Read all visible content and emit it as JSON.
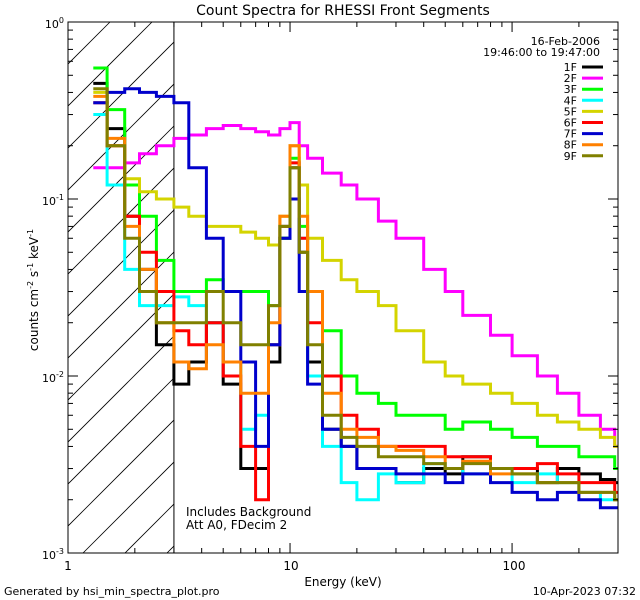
{
  "chart_data": {
    "type": "line",
    "title": "Count Spectra for RHESSI Front Segments",
    "xlabel": "Energy (keV)",
    "ylabel": "counts cm",
    "ylabel_sup1": "-2",
    "ylabel_mid": " s",
    "ylabel_sup2": "-1",
    "ylabel_tail": " keV",
    "ylabel_sup3": "-1",
    "x_scale": "log",
    "y_scale": "log",
    "xlim": [
      1.0,
      300.0
    ],
    "ylim": [
      0.001,
      1.0
    ],
    "x_ticks": [
      {
        "value": 1,
        "label": "1"
      },
      {
        "value": 10,
        "label": "10"
      },
      {
        "value": 100,
        "label": "100"
      }
    ],
    "y_ticks": [
      {
        "value": 1,
        "base": "10",
        "exp": "0"
      },
      {
        "value": 0.1,
        "base": "10",
        "exp": "-1"
      },
      {
        "value": 0.01,
        "base": "10",
        "exp": "-2"
      },
      {
        "value": 0.001,
        "base": "10",
        "exp": "-3"
      }
    ],
    "date": "16-Feb-2006",
    "time_range": "19:46:00 to 19:47:00",
    "shaded_region_keV": [
      1.0,
      3.0
    ],
    "annotation_line1": "Includes Background",
    "annotation_line2": "Att A0, FDecim 2",
    "legend_position": "top-right",
    "series": [
      {
        "name": "1F",
        "color": "#000000",
        "x": [
          1.3,
          1.5,
          1.8,
          2.1,
          2.5,
          3.0,
          3.5,
          4.2,
          5,
          6,
          7,
          8,
          9,
          10,
          11,
          12,
          14,
          17,
          20,
          25,
          30,
          40,
          50,
          60,
          80,
          100,
          130,
          160,
          200,
          250,
          290
        ],
        "y": [
          0.45,
          0.25,
          0.08,
          0.04,
          0.015,
          0.009,
          0.012,
          0.02,
          0.009,
          0.003,
          0.003,
          0.012,
          0.06,
          0.15,
          0.05,
          0.012,
          0.005,
          0.004,
          0.003,
          0.003,
          0.0025,
          0.003,
          0.0028,
          0.0035,
          0.003,
          0.003,
          0.0025,
          0.003,
          0.0028,
          0.0026,
          0.0025
        ]
      },
      {
        "name": "2F",
        "color": "#ff00ff",
        "x": [
          1.3,
          1.5,
          1.8,
          2.1,
          2.5,
          3.0,
          3.5,
          4.2,
          5,
          6,
          7,
          8,
          9,
          10,
          11,
          12,
          14,
          17,
          20,
          25,
          30,
          40,
          50,
          60,
          80,
          100,
          130,
          160,
          200,
          250,
          290
        ],
        "y": [
          0.15,
          0.15,
          0.16,
          0.18,
          0.2,
          0.22,
          0.23,
          0.25,
          0.26,
          0.25,
          0.24,
          0.23,
          0.25,
          0.27,
          0.2,
          0.17,
          0.14,
          0.12,
          0.1,
          0.075,
          0.06,
          0.04,
          0.03,
          0.022,
          0.017,
          0.013,
          0.01,
          0.008,
          0.006,
          0.005,
          0.004
        ]
      },
      {
        "name": "3F",
        "color": "#00ff00",
        "x": [
          1.3,
          1.5,
          1.8,
          2.1,
          2.5,
          3.0,
          3.5,
          4.2,
          5,
          6,
          7,
          8,
          9,
          10,
          11,
          12,
          14,
          17,
          20,
          25,
          30,
          40,
          50,
          60,
          80,
          100,
          130,
          160,
          200,
          250,
          290
        ],
        "y": [
          0.55,
          0.32,
          0.12,
          0.08,
          0.045,
          0.03,
          0.03,
          0.035,
          0.03,
          0.03,
          0.03,
          0.025,
          0.06,
          0.17,
          0.07,
          0.03,
          0.018,
          0.01,
          0.008,
          0.007,
          0.006,
          0.006,
          0.005,
          0.0055,
          0.005,
          0.0045,
          0.004,
          0.004,
          0.0035,
          0.0035,
          0.003
        ]
      },
      {
        "name": "4F",
        "color": "#00ffff",
        "x": [
          1.3,
          1.5,
          1.8,
          2.1,
          2.5,
          3.0,
          3.5,
          4.2,
          5,
          6,
          7,
          8,
          9,
          10,
          11,
          12,
          14,
          17,
          20,
          25,
          30,
          40,
          50,
          60,
          80,
          100,
          130,
          160,
          200,
          250,
          290
        ],
        "y": [
          0.3,
          0.12,
          0.04,
          0.025,
          0.025,
          0.028,
          0.025,
          0.02,
          0.012,
          0.005,
          0.006,
          0.015,
          0.07,
          0.16,
          0.06,
          0.01,
          0.004,
          0.0025,
          0.002,
          0.0028,
          0.0025,
          0.0032,
          0.003,
          0.0028,
          0.003,
          0.0025,
          0.0028,
          0.0025,
          0.0022,
          0.002,
          0.002
        ]
      },
      {
        "name": "5F",
        "color": "#d4d400",
        "x": [
          1.3,
          1.5,
          1.8,
          2.1,
          2.5,
          3.0,
          3.5,
          4.2,
          5,
          6,
          7,
          8,
          9,
          10,
          11,
          12,
          14,
          17,
          20,
          25,
          30,
          40,
          50,
          60,
          80,
          100,
          130,
          160,
          200,
          250,
          290
        ],
        "y": [
          0.4,
          0.2,
          0.13,
          0.11,
          0.1,
          0.09,
          0.08,
          0.07,
          0.07,
          0.065,
          0.06,
          0.055,
          0.08,
          0.2,
          0.12,
          0.06,
          0.045,
          0.035,
          0.03,
          0.025,
          0.018,
          0.012,
          0.01,
          0.009,
          0.008,
          0.007,
          0.006,
          0.0055,
          0.005,
          0.0045,
          0.004
        ]
      },
      {
        "name": "6F",
        "color": "#ff0000",
        "x": [
          1.3,
          1.5,
          1.8,
          2.1,
          2.5,
          3.0,
          3.5,
          4.2,
          5,
          6,
          7,
          8,
          9,
          10,
          11,
          12,
          14,
          17,
          20,
          25,
          30,
          40,
          50,
          60,
          80,
          100,
          130,
          160,
          200,
          250,
          290
        ],
        "y": [
          0.35,
          0.2,
          0.08,
          0.05,
          0.03,
          0.018,
          0.015,
          0.02,
          0.01,
          0.004,
          0.002,
          0.015,
          0.07,
          0.16,
          0.06,
          0.02,
          0.01,
          0.006,
          0.005,
          0.004,
          0.004,
          0.004,
          0.0035,
          0.0035,
          0.003,
          0.003,
          0.0032,
          0.0028,
          0.0025,
          0.0025,
          0.0022
        ]
      },
      {
        "name": "7F",
        "color": "#0000cc",
        "x": [
          1.3,
          1.5,
          1.8,
          2.1,
          2.5,
          3.0,
          3.5,
          4.2,
          5,
          6,
          7,
          8,
          9,
          10,
          11,
          12,
          14,
          17,
          20,
          25,
          30,
          40,
          50,
          60,
          80,
          100,
          130,
          160,
          200,
          250,
          290
        ],
        "y": [
          0.35,
          0.4,
          0.42,
          0.4,
          0.38,
          0.35,
          0.15,
          0.06,
          0.03,
          0.012,
          0.004,
          0.015,
          0.06,
          0.1,
          0.03,
          0.009,
          0.005,
          0.004,
          0.003,
          0.003,
          0.0028,
          0.0028,
          0.0025,
          0.0028,
          0.0025,
          0.0022,
          0.002,
          0.0022,
          0.002,
          0.0018,
          0.0018
        ]
      },
      {
        "name": "8F",
        "color": "#ff8000",
        "x": [
          1.3,
          1.5,
          1.8,
          2.1,
          2.5,
          3.0,
          3.5,
          4.2,
          5,
          6,
          7,
          8,
          9,
          10,
          11,
          12,
          14,
          17,
          20,
          25,
          30,
          40,
          50,
          60,
          80,
          100,
          130,
          160,
          200,
          250,
          290
        ],
        "y": [
          0.38,
          0.22,
          0.07,
          0.04,
          0.02,
          0.012,
          0.011,
          0.015,
          0.012,
          0.008,
          0.008,
          0.02,
          0.08,
          0.2,
          0.08,
          0.03,
          0.008,
          0.005,
          0.0045,
          0.004,
          0.0038,
          0.0035,
          0.003,
          0.0033,
          0.0028,
          0.0028,
          0.0025,
          0.0025,
          0.0022,
          0.0022,
          0.002
        ]
      },
      {
        "name": "9F",
        "color": "#808000",
        "x": [
          1.3,
          1.5,
          1.8,
          2.1,
          2.5,
          3.0,
          3.5,
          4.2,
          5,
          6,
          7,
          8,
          9,
          10,
          11,
          12,
          14,
          17,
          20,
          25,
          30,
          40,
          50,
          60,
          80,
          100,
          130,
          160,
          200,
          250,
          290
        ],
        "y": [
          0.42,
          0.2,
          0.06,
          0.03,
          0.02,
          0.02,
          0.02,
          0.03,
          0.02,
          0.015,
          0.015,
          0.025,
          0.07,
          0.15,
          0.05,
          0.015,
          0.006,
          0.0045,
          0.004,
          0.0035,
          0.0035,
          0.0032,
          0.003,
          0.0032,
          0.003,
          0.0028,
          0.0025,
          0.0025,
          0.0022,
          0.0022,
          0.002
        ]
      }
    ]
  },
  "footer": {
    "generated_by": "Generated by hsi_min_spectra_plot.pro",
    "timestamp": "10-Apr-2023 07:32"
  }
}
